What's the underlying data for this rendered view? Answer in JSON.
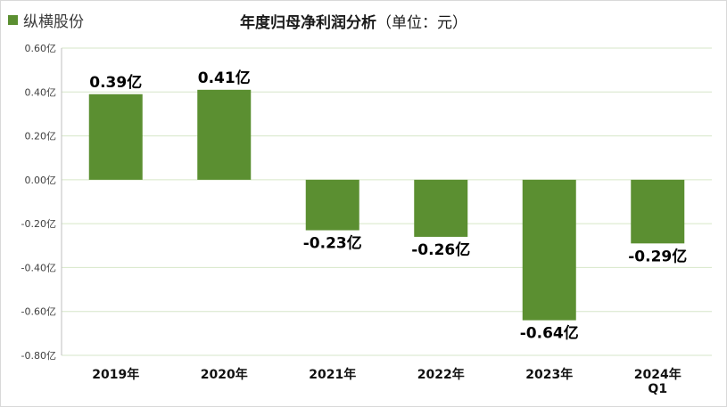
{
  "legend": {
    "label": "纵横股份",
    "color": "#5b8f31"
  },
  "title": {
    "main": "年度归母净利润分析",
    "unit": "（单位：元）"
  },
  "colors": {
    "bar": "#5b8f31",
    "grid": "#d6e6c8",
    "axis": "#bfbfbf"
  },
  "chart_data": {
    "type": "bar",
    "title": "年度归母净利润分析（单位：元）",
    "categories": [
      "2019年",
      "2020年",
      "2021年",
      "2022年",
      "2023年",
      "2024年\nQ1"
    ],
    "series": [
      {
        "name": "纵横股份",
        "values": [
          0.39,
          0.41,
          -0.23,
          -0.26,
          -0.64,
          -0.29
        ]
      }
    ],
    "data_labels": [
      "0.39亿",
      "0.41亿",
      "-0.23亿",
      "-0.26亿",
      "-0.64亿",
      "-0.29亿"
    ],
    "ylim": [
      -0.8,
      0.6
    ],
    "yticks": [
      0.6,
      0.4,
      0.2,
      0.0,
      -0.2,
      -0.4,
      -0.6,
      -0.8
    ],
    "ytick_labels": [
      "0.60亿",
      "0.40亿",
      "0.20亿",
      "0.00亿",
      "-0.20亿",
      "-0.40亿",
      "-0.60亿",
      "-0.80亿"
    ],
    "grid": true,
    "legend_position": "top-left"
  }
}
